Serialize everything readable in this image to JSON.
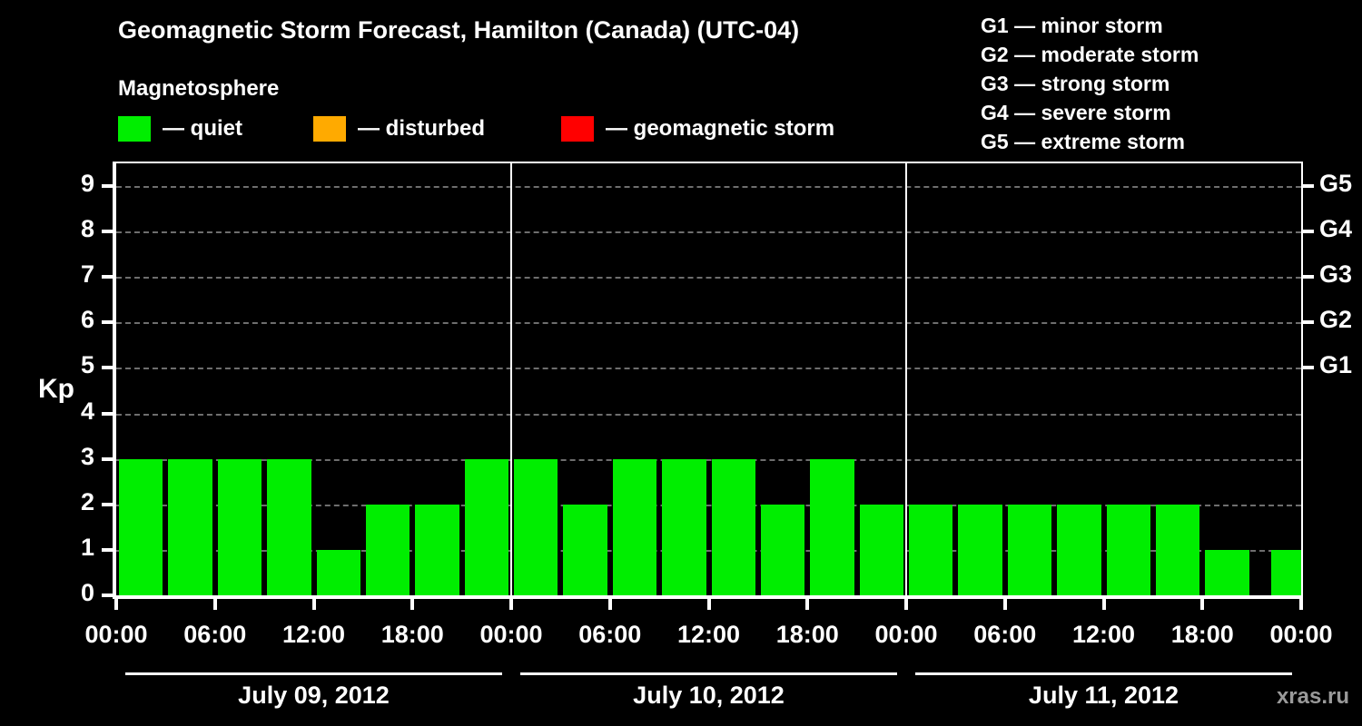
{
  "title": "Geomagnetic Storm Forecast, Hamilton (Canada) (UTC-04)",
  "subtitle": "Magnetosphere",
  "legend": {
    "items": [
      {
        "label": "— quiet",
        "color": "#00ee00"
      },
      {
        "label": "— disturbed",
        "color": "#ffaa00"
      },
      {
        "label": "— geomagnetic storm",
        "color": "#ff0000"
      }
    ]
  },
  "g_legend": [
    "G1 — minor storm",
    "G2 — moderate storm",
    "G3 — strong storm",
    "G4 — severe storm",
    "G5 — extreme storm"
  ],
  "watermark": "xras.ru",
  "chart_data": {
    "type": "bar",
    "title": "Geomagnetic Storm Forecast, Hamilton (Canada) (UTC-04)",
    "ylabel": "Kp",
    "ylim": [
      0,
      9.5
    ],
    "yticks": [
      0,
      1,
      2,
      3,
      4,
      5,
      6,
      7,
      8,
      9
    ],
    "right_axis": [
      {
        "kp": 5,
        "label": "G1"
      },
      {
        "kp": 6,
        "label": "G2"
      },
      {
        "kp": 7,
        "label": "G3"
      },
      {
        "kp": 8,
        "label": "G4"
      },
      {
        "kp": 9,
        "label": "G5"
      }
    ],
    "xticks": [
      "00:00",
      "06:00",
      "12:00",
      "18:00"
    ],
    "xtick_end": "00:00",
    "interval_hours": 3,
    "grid": "dashed-horizontal",
    "days": [
      {
        "date": "July 09, 2012",
        "values": [
          3,
          3,
          3,
          3,
          1,
          2,
          2,
          3
        ]
      },
      {
        "date": "July 10, 2012",
        "values": [
          3,
          2,
          3,
          3,
          3,
          2,
          3,
          2
        ]
      },
      {
        "date": "July 11, 2012",
        "values": [
          2,
          2,
          2,
          2,
          2,
          2,
          1,
          1
        ]
      }
    ],
    "color_rule": {
      "quiet_max_kp": 3,
      "disturbed_kp": 4,
      "storm_min_kp": 5
    }
  }
}
